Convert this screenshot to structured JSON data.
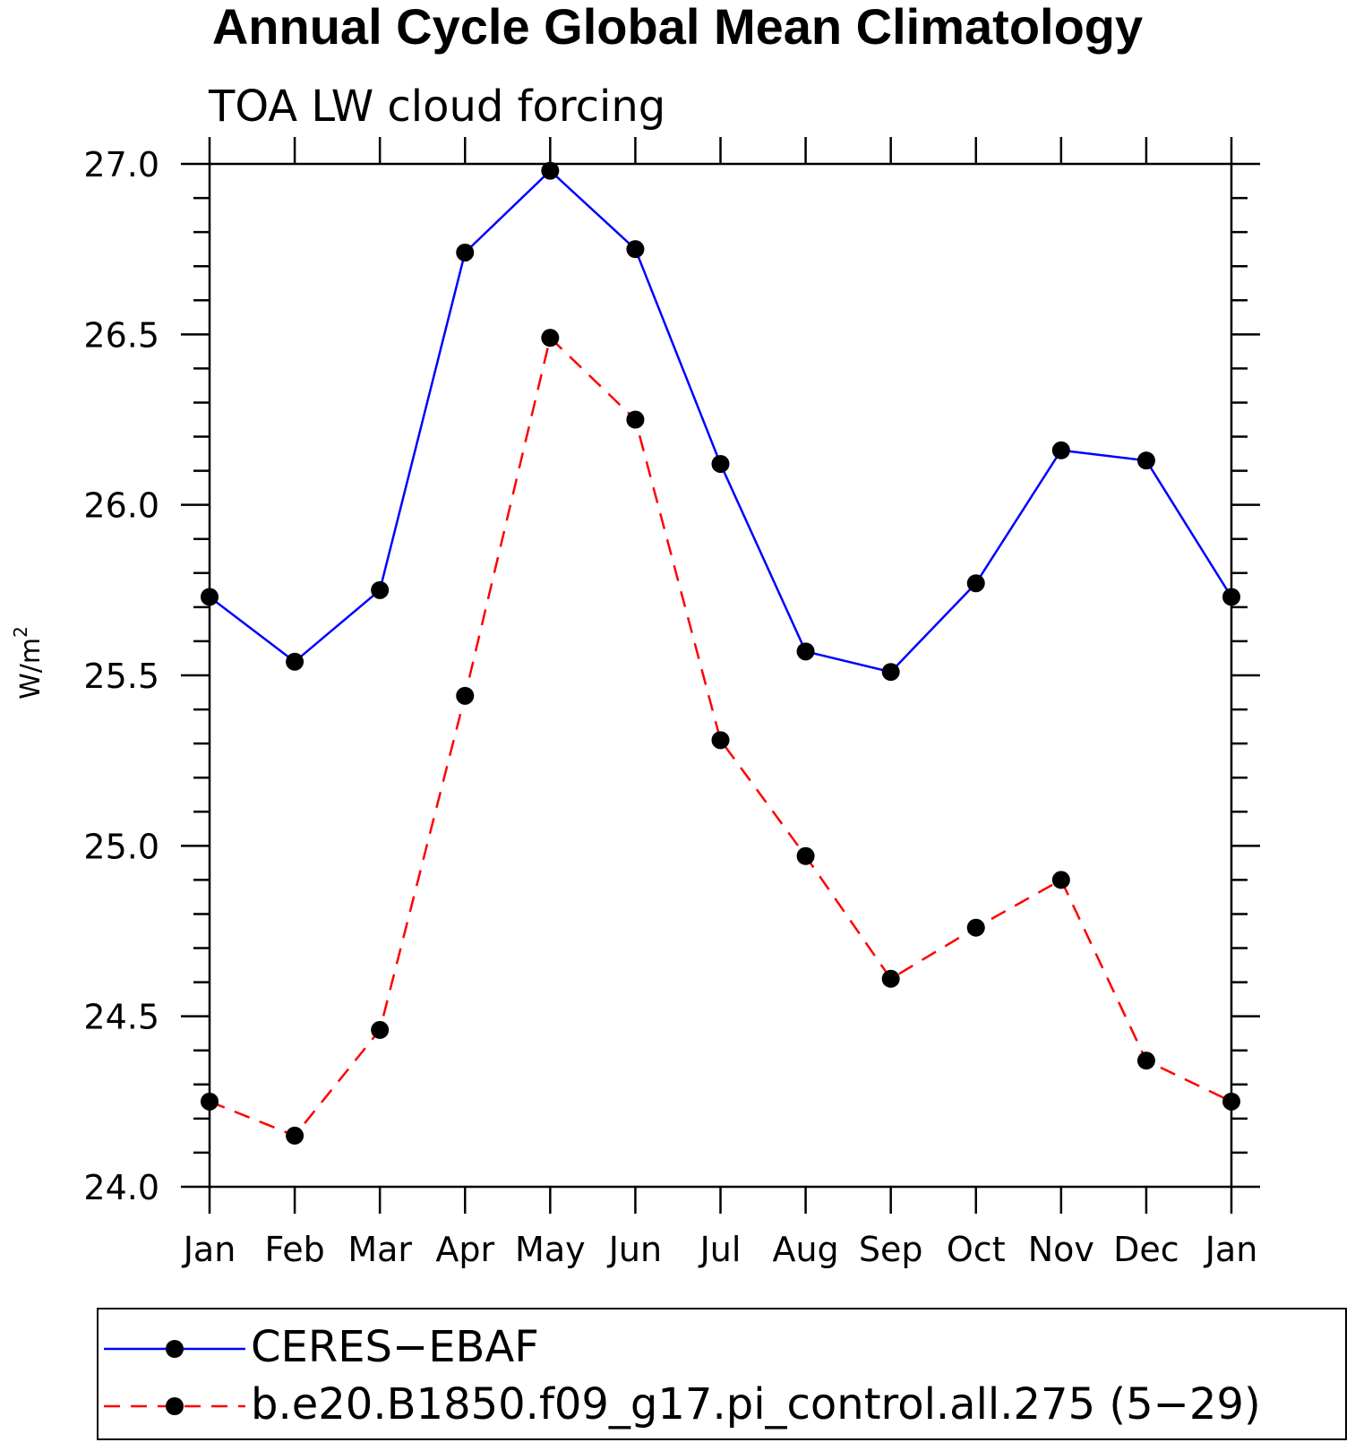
{
  "title": "Annual Cycle Global Mean Climatology",
  "chart_data": {
    "type": "line",
    "title": "Annual Cycle Global Mean Climatology",
    "subtitle": "TOA LW cloud forcing",
    "xlabel": "",
    "ylabel": "W/m²",
    "ylabel_base": "W/m",
    "ylabel_sup": "2",
    "categories": [
      "Jan",
      "Feb",
      "Mar",
      "Apr",
      "May",
      "Jun",
      "Jul",
      "Aug",
      "Sep",
      "Oct",
      "Nov",
      "Dec",
      "Jan"
    ],
    "ylim": [
      24.0,
      27.0
    ],
    "yticks": [
      "24.0",
      "24.5",
      "25.0",
      "25.5",
      "26.0",
      "26.5",
      "27.0"
    ],
    "grid": false,
    "legend_position": "bottom",
    "series": [
      {
        "name": "CERES−EBAF",
        "color": "#0000ff",
        "line_style": "solid",
        "marker": "filled-circle",
        "values": [
          25.73,
          25.54,
          25.75,
          26.74,
          26.98,
          26.75,
          26.12,
          25.57,
          25.51,
          25.77,
          26.16,
          26.13,
          25.73
        ]
      },
      {
        "name": "b.e20.B1850.f09_g17.pi_control.all.275 (5−29)",
        "color": "#ff0000",
        "line_style": "dashed",
        "marker": "filled-circle",
        "values": [
          24.25,
          24.15,
          24.46,
          25.44,
          26.49,
          26.25,
          25.31,
          24.97,
          24.61,
          24.76,
          24.9,
          24.37,
          24.25
        ]
      }
    ]
  }
}
